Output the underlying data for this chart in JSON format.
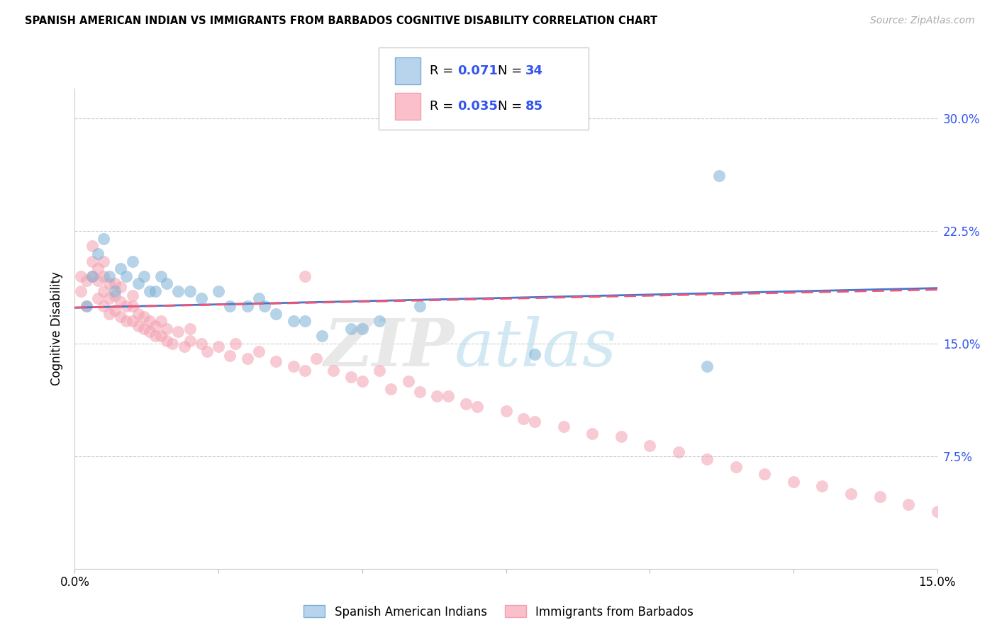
{
  "title": "SPANISH AMERICAN INDIAN VS IMMIGRANTS FROM BARBADOS COGNITIVE DISABILITY CORRELATION CHART",
  "source": "Source: ZipAtlas.com",
  "ylabel": "Cognitive Disability",
  "ytick_vals": [
    0.075,
    0.15,
    0.225,
    0.3
  ],
  "ytick_labels": [
    "7.5%",
    "15.0%",
    "22.5%",
    "30.0%"
  ],
  "xlim": [
    0.0,
    0.15
  ],
  "ylim": [
    0.0,
    0.32
  ],
  "legend_label1": "Spanish American Indians",
  "legend_label2": "Immigrants from Barbados",
  "color_blue": "#7BAFD4",
  "color_pink": "#F4A0B0",
  "color_blue_light": "#B8D4EC",
  "color_pink_light": "#FBBFCC",
  "color_rn": "#3355EE",
  "blue_line_color": "#4477CC",
  "pink_line_color": "#EE5577",
  "blue_x": [
    0.002,
    0.003,
    0.004,
    0.005,
    0.006,
    0.007,
    0.008,
    0.009,
    0.01,
    0.011,
    0.012,
    0.013,
    0.014,
    0.015,
    0.016,
    0.018,
    0.02,
    0.022,
    0.025,
    0.027,
    0.03,
    0.032,
    0.033,
    0.035,
    0.038,
    0.04,
    0.043,
    0.048,
    0.05,
    0.053,
    0.06,
    0.08,
    0.11,
    0.112
  ],
  "blue_y": [
    0.175,
    0.195,
    0.21,
    0.22,
    0.195,
    0.185,
    0.2,
    0.195,
    0.205,
    0.19,
    0.195,
    0.185,
    0.185,
    0.195,
    0.19,
    0.185,
    0.185,
    0.18,
    0.185,
    0.175,
    0.175,
    0.18,
    0.175,
    0.17,
    0.165,
    0.165,
    0.155,
    0.16,
    0.16,
    0.165,
    0.175,
    0.143,
    0.135,
    0.262
  ],
  "pink_x": [
    0.001,
    0.001,
    0.002,
    0.002,
    0.003,
    0.003,
    0.003,
    0.004,
    0.004,
    0.004,
    0.005,
    0.005,
    0.005,
    0.005,
    0.006,
    0.006,
    0.006,
    0.007,
    0.007,
    0.007,
    0.008,
    0.008,
    0.008,
    0.009,
    0.009,
    0.01,
    0.01,
    0.01,
    0.011,
    0.011,
    0.012,
    0.012,
    0.013,
    0.013,
    0.014,
    0.014,
    0.015,
    0.015,
    0.016,
    0.016,
    0.017,
    0.018,
    0.019,
    0.02,
    0.02,
    0.022,
    0.023,
    0.025,
    0.027,
    0.028,
    0.03,
    0.032,
    0.035,
    0.038,
    0.04,
    0.042,
    0.045,
    0.048,
    0.05,
    0.053,
    0.055,
    0.058,
    0.06,
    0.063,
    0.065,
    0.068,
    0.07,
    0.075,
    0.078,
    0.08,
    0.085,
    0.09,
    0.095,
    0.1,
    0.105,
    0.11,
    0.115,
    0.12,
    0.125,
    0.13,
    0.135,
    0.14,
    0.145,
    0.15,
    0.04
  ],
  "pink_y": [
    0.185,
    0.195,
    0.175,
    0.192,
    0.215,
    0.205,
    0.195,
    0.18,
    0.192,
    0.2,
    0.175,
    0.185,
    0.195,
    0.205,
    0.17,
    0.18,
    0.19,
    0.172,
    0.182,
    0.19,
    0.168,
    0.178,
    0.188,
    0.165,
    0.175,
    0.165,
    0.175,
    0.182,
    0.162,
    0.17,
    0.16,
    0.168,
    0.158,
    0.165,
    0.155,
    0.162,
    0.155,
    0.165,
    0.152,
    0.16,
    0.15,
    0.158,
    0.148,
    0.152,
    0.16,
    0.15,
    0.145,
    0.148,
    0.142,
    0.15,
    0.14,
    0.145,
    0.138,
    0.135,
    0.132,
    0.14,
    0.132,
    0.128,
    0.125,
    0.132,
    0.12,
    0.125,
    0.118,
    0.115,
    0.115,
    0.11,
    0.108,
    0.105,
    0.1,
    0.098,
    0.095,
    0.09,
    0.088,
    0.082,
    0.078,
    0.073,
    0.068,
    0.063,
    0.058,
    0.055,
    0.05,
    0.048,
    0.043,
    0.038,
    0.195
  ],
  "blue_trend": [
    0.174,
    0.187
  ],
  "pink_trend": [
    0.174,
    0.186
  ]
}
